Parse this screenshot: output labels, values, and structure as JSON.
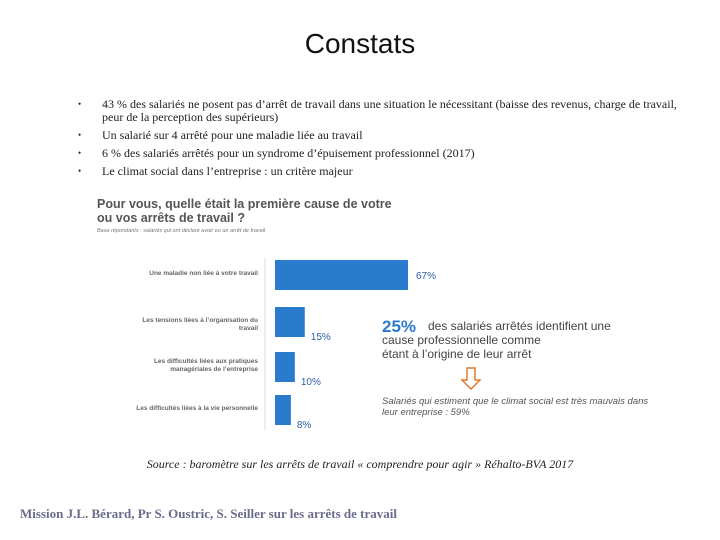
{
  "title": "Constats",
  "bullets": [
    "43 % des salariés ne posent pas d’arrêt de travail dans une situation le nécessitant (baisse des revenus, charge de travail, peur de la perception des supérieurs)",
    "Un salarié sur 4 arrêté pour une maladie liée au travail",
    "6 % des salariés arrêtés pour un syndrome d’épuisement professionnel (2017)",
    "Le climat social dans l’entreprise : un critère majeur"
  ],
  "chart_data": {
    "type": "bar",
    "title": "Pour vous, quelle était la première cause de votre ou vos arrêts de travail ?",
    "subtitle": "Base répondants : salariés qui ont déclaré avoir eu un arrêt de travail",
    "categories": [
      "Une maladie non liée à votre travail",
      "Les tensions liées à l’organisation du travail",
      "Les difficultés liées aux pratiques managériales de l’entreprise",
      "Les difficultés liées à la vie personnelle"
    ],
    "values": [
      67,
      15,
      10,
      8
    ],
    "value_labels": [
      "67%",
      "15%",
      "10%",
      "8%"
    ],
    "color": "#2b7bcc",
    "annotations": [
      "25%",
      "des salariés arrêtés identifient une cause professionnelle comme étant à l’origine de leur arrêt",
      "Salariés qui estiment que le climat social est très mauvais dans leur entreprise : 59%"
    ]
  },
  "source": "Source : baromètre sur les arrêts de travail « comprendre pour agir » Réhalto-BVA 2017",
  "footer": "Mission J.L. Bérard, Pr S. Oustric, S. Seiller sur les arrêts de travail"
}
